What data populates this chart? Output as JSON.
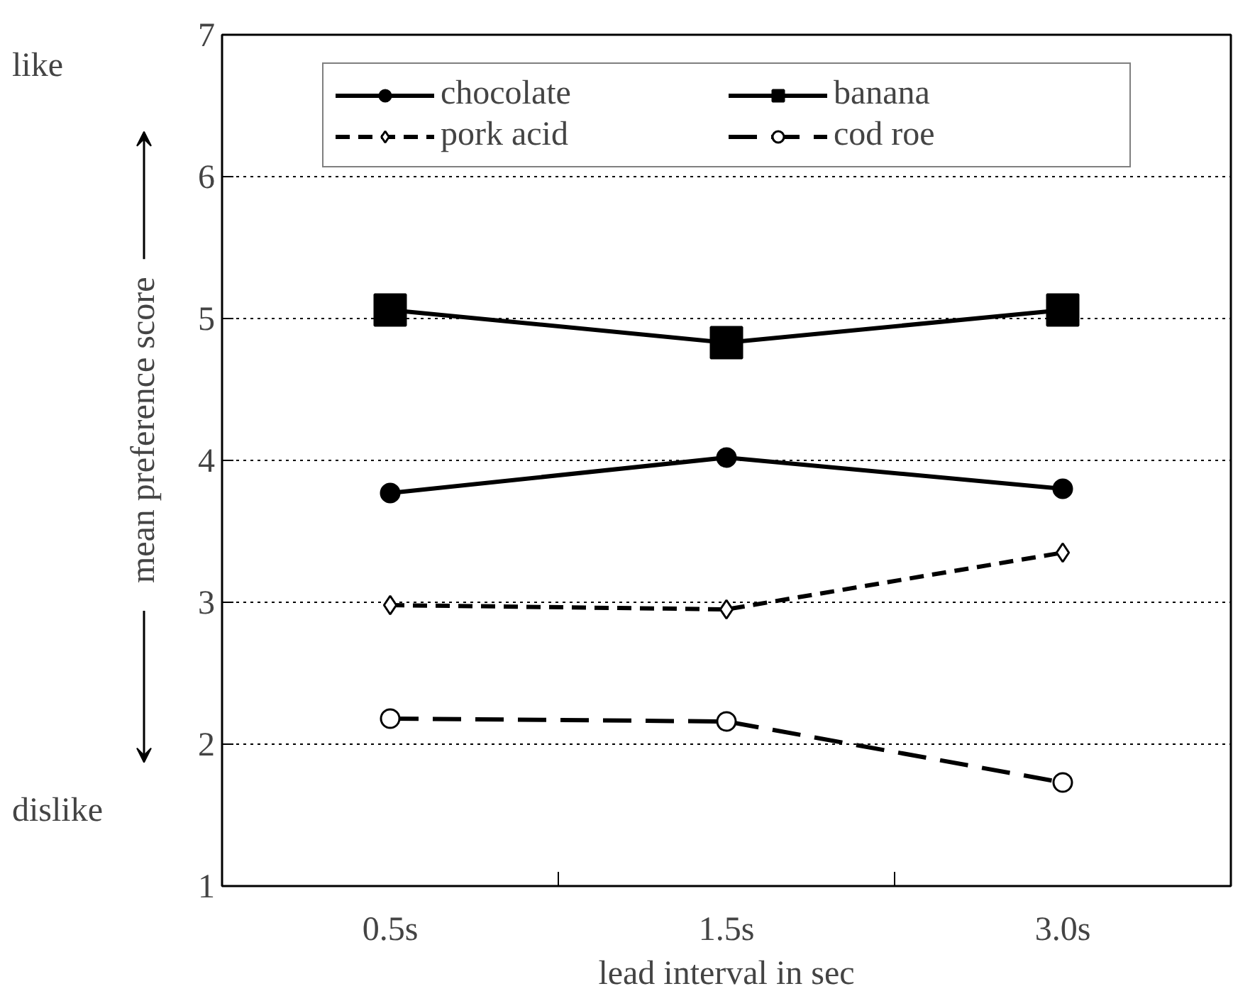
{
  "chart_data": {
    "type": "line",
    "xlabel": "lead interval in sec",
    "ylabel": "mean preference score",
    "categories": [
      "0.5s",
      "1.5s",
      "3.0s"
    ],
    "series": [
      {
        "name": "chocolate",
        "color": "#000000",
        "marker": "circle",
        "line_style": "solid",
        "values": [
          3.77,
          4.02,
          3.8
        ]
      },
      {
        "name": "banana",
        "color": "#000000",
        "marker": "square",
        "line_style": "solid",
        "values": [
          5.06,
          4.83,
          5.06
        ]
      },
      {
        "name": "pork acid",
        "color": "#000000",
        "marker": "diamond",
        "line_style": "dashed",
        "values": [
          2.98,
          2.95,
          3.35
        ]
      },
      {
        "name": "cod roe",
        "color": "#000000",
        "marker": "circle",
        "line_style": "dashed",
        "values": [
          2.18,
          2.16,
          1.73
        ]
      }
    ],
    "ylim": [
      1,
      7
    ],
    "yticks": [
      1,
      2,
      3,
      4,
      5,
      6,
      7
    ],
    "grid": "y",
    "legend": "top",
    "annotations": [
      "like",
      "dislike"
    ]
  }
}
